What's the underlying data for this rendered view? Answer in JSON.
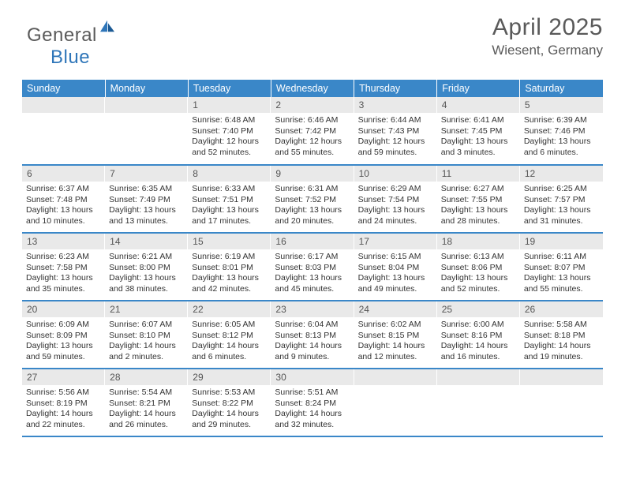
{
  "brand": {
    "name_part1": "General",
    "name_part2": "Blue"
  },
  "colors": {
    "header_bg": "#3a87c8",
    "daynum_bg": "#e9e9e9",
    "text": "#333333",
    "muted": "#5a5a5a",
    "row_border": "#3a87c8"
  },
  "title": "April 2025",
  "location": "Wiesent, Germany",
  "weekdays": [
    "Sunday",
    "Monday",
    "Tuesday",
    "Wednesday",
    "Thursday",
    "Friday",
    "Saturday"
  ],
  "weeks": [
    [
      null,
      null,
      {
        "n": "1",
        "sunrise": "Sunrise: 6:48 AM",
        "sunset": "Sunset: 7:40 PM",
        "daylight": "Daylight: 12 hours and 52 minutes."
      },
      {
        "n": "2",
        "sunrise": "Sunrise: 6:46 AM",
        "sunset": "Sunset: 7:42 PM",
        "daylight": "Daylight: 12 hours and 55 minutes."
      },
      {
        "n": "3",
        "sunrise": "Sunrise: 6:44 AM",
        "sunset": "Sunset: 7:43 PM",
        "daylight": "Daylight: 12 hours and 59 minutes."
      },
      {
        "n": "4",
        "sunrise": "Sunrise: 6:41 AM",
        "sunset": "Sunset: 7:45 PM",
        "daylight": "Daylight: 13 hours and 3 minutes."
      },
      {
        "n": "5",
        "sunrise": "Sunrise: 6:39 AM",
        "sunset": "Sunset: 7:46 PM",
        "daylight": "Daylight: 13 hours and 6 minutes."
      }
    ],
    [
      {
        "n": "6",
        "sunrise": "Sunrise: 6:37 AM",
        "sunset": "Sunset: 7:48 PM",
        "daylight": "Daylight: 13 hours and 10 minutes."
      },
      {
        "n": "7",
        "sunrise": "Sunrise: 6:35 AM",
        "sunset": "Sunset: 7:49 PM",
        "daylight": "Daylight: 13 hours and 13 minutes."
      },
      {
        "n": "8",
        "sunrise": "Sunrise: 6:33 AM",
        "sunset": "Sunset: 7:51 PM",
        "daylight": "Daylight: 13 hours and 17 minutes."
      },
      {
        "n": "9",
        "sunrise": "Sunrise: 6:31 AM",
        "sunset": "Sunset: 7:52 PM",
        "daylight": "Daylight: 13 hours and 20 minutes."
      },
      {
        "n": "10",
        "sunrise": "Sunrise: 6:29 AM",
        "sunset": "Sunset: 7:54 PM",
        "daylight": "Daylight: 13 hours and 24 minutes."
      },
      {
        "n": "11",
        "sunrise": "Sunrise: 6:27 AM",
        "sunset": "Sunset: 7:55 PM",
        "daylight": "Daylight: 13 hours and 28 minutes."
      },
      {
        "n": "12",
        "sunrise": "Sunrise: 6:25 AM",
        "sunset": "Sunset: 7:57 PM",
        "daylight": "Daylight: 13 hours and 31 minutes."
      }
    ],
    [
      {
        "n": "13",
        "sunrise": "Sunrise: 6:23 AM",
        "sunset": "Sunset: 7:58 PM",
        "daylight": "Daylight: 13 hours and 35 minutes."
      },
      {
        "n": "14",
        "sunrise": "Sunrise: 6:21 AM",
        "sunset": "Sunset: 8:00 PM",
        "daylight": "Daylight: 13 hours and 38 minutes."
      },
      {
        "n": "15",
        "sunrise": "Sunrise: 6:19 AM",
        "sunset": "Sunset: 8:01 PM",
        "daylight": "Daylight: 13 hours and 42 minutes."
      },
      {
        "n": "16",
        "sunrise": "Sunrise: 6:17 AM",
        "sunset": "Sunset: 8:03 PM",
        "daylight": "Daylight: 13 hours and 45 minutes."
      },
      {
        "n": "17",
        "sunrise": "Sunrise: 6:15 AM",
        "sunset": "Sunset: 8:04 PM",
        "daylight": "Daylight: 13 hours and 49 minutes."
      },
      {
        "n": "18",
        "sunrise": "Sunrise: 6:13 AM",
        "sunset": "Sunset: 8:06 PM",
        "daylight": "Daylight: 13 hours and 52 minutes."
      },
      {
        "n": "19",
        "sunrise": "Sunrise: 6:11 AM",
        "sunset": "Sunset: 8:07 PM",
        "daylight": "Daylight: 13 hours and 55 minutes."
      }
    ],
    [
      {
        "n": "20",
        "sunrise": "Sunrise: 6:09 AM",
        "sunset": "Sunset: 8:09 PM",
        "daylight": "Daylight: 13 hours and 59 minutes."
      },
      {
        "n": "21",
        "sunrise": "Sunrise: 6:07 AM",
        "sunset": "Sunset: 8:10 PM",
        "daylight": "Daylight: 14 hours and 2 minutes."
      },
      {
        "n": "22",
        "sunrise": "Sunrise: 6:05 AM",
        "sunset": "Sunset: 8:12 PM",
        "daylight": "Daylight: 14 hours and 6 minutes."
      },
      {
        "n": "23",
        "sunrise": "Sunrise: 6:04 AM",
        "sunset": "Sunset: 8:13 PM",
        "daylight": "Daylight: 14 hours and 9 minutes."
      },
      {
        "n": "24",
        "sunrise": "Sunrise: 6:02 AM",
        "sunset": "Sunset: 8:15 PM",
        "daylight": "Daylight: 14 hours and 12 minutes."
      },
      {
        "n": "25",
        "sunrise": "Sunrise: 6:00 AM",
        "sunset": "Sunset: 8:16 PM",
        "daylight": "Daylight: 14 hours and 16 minutes."
      },
      {
        "n": "26",
        "sunrise": "Sunrise: 5:58 AM",
        "sunset": "Sunset: 8:18 PM",
        "daylight": "Daylight: 14 hours and 19 minutes."
      }
    ],
    [
      {
        "n": "27",
        "sunrise": "Sunrise: 5:56 AM",
        "sunset": "Sunset: 8:19 PM",
        "daylight": "Daylight: 14 hours and 22 minutes."
      },
      {
        "n": "28",
        "sunrise": "Sunrise: 5:54 AM",
        "sunset": "Sunset: 8:21 PM",
        "daylight": "Daylight: 14 hours and 26 minutes."
      },
      {
        "n": "29",
        "sunrise": "Sunrise: 5:53 AM",
        "sunset": "Sunset: 8:22 PM",
        "daylight": "Daylight: 14 hours and 29 minutes."
      },
      {
        "n": "30",
        "sunrise": "Sunrise: 5:51 AM",
        "sunset": "Sunset: 8:24 PM",
        "daylight": "Daylight: 14 hours and 32 minutes."
      },
      null,
      null,
      null
    ]
  ]
}
